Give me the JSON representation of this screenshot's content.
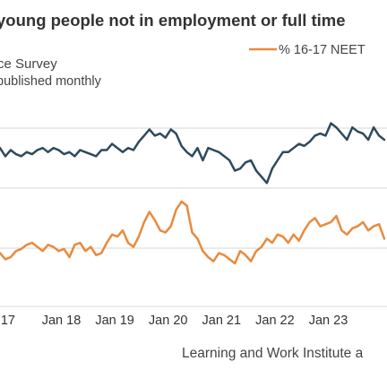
{
  "chart_data": {
    "type": "line",
    "title": "young people not in employment or full time",
    "subtitle_lines": [
      "rce Survey",
      "published monthly"
    ],
    "source": "Learning and Work Institute a",
    "legend": {
      "placement": "top-right",
      "visible_series": [
        "% 16-17 NEET"
      ]
    },
    "grid": true,
    "x_tick_labels": [
      {
        "label": "17",
        "x": 2017.0
      },
      {
        "label": "Jan 18",
        "x": 2018.0
      },
      {
        "label": "Jan 19",
        "x": 2019.0
      },
      {
        "label": "Jan 20",
        "x": 2020.0
      },
      {
        "label": "Jan 21",
        "x": 2021.0
      },
      {
        "label": "Jan 22",
        "x": 2022.0
      },
      {
        "label": "Jan 23",
        "x": 2023.0
      }
    ],
    "xlim": [
      2016.85,
      2024.1
    ],
    "ylim": [
      0,
      10
    ],
    "series": [
      {
        "name": "",
        "color": "#2e4a5c",
        "x": [
          2016.85,
          2016.95,
          2017.05,
          2017.15,
          2017.25,
          2017.35,
          2017.45,
          2017.55,
          2017.65,
          2017.75,
          2017.85,
          2017.95,
          2018.05,
          2018.15,
          2018.25,
          2018.35,
          2018.45,
          2018.55,
          2018.65,
          2018.75,
          2018.85,
          2018.95,
          2019.05,
          2019.15,
          2019.25,
          2019.35,
          2019.45,
          2019.55,
          2019.65,
          2019.75,
          2019.85,
          2019.95,
          2020.05,
          2020.15,
          2020.25,
          2020.35,
          2020.45,
          2020.55,
          2020.65,
          2020.75,
          2020.85,
          2020.95,
          2021.05,
          2021.15,
          2021.25,
          2021.35,
          2021.45,
          2021.55,
          2021.65,
          2021.75,
          2021.85,
          2021.95,
          2022.05,
          2022.15,
          2022.25,
          2022.35,
          2022.45,
          2022.55,
          2022.65,
          2022.75,
          2022.85,
          2022.95,
          2023.05,
          2023.15,
          2023.25,
          2023.35,
          2023.45,
          2023.55,
          2023.65,
          2023.75,
          2023.85,
          2023.95,
          2024.05
        ],
        "values": [
          7.6,
          7.2,
          7.5,
          7.3,
          7.2,
          7.4,
          7.3,
          7.5,
          7.6,
          7.4,
          7.6,
          7.5,
          7.3,
          7.4,
          7.2,
          7.5,
          7.4,
          7.3,
          7.2,
          7.5,
          7.5,
          7.8,
          7.6,
          7.4,
          7.6,
          7.5,
          7.9,
          8.2,
          8.5,
          8.2,
          8.3,
          8.1,
          8.5,
          8.3,
          7.7,
          7.4,
          7.2,
          7.6,
          7.0,
          7.6,
          7.5,
          7.4,
          7.2,
          7.0,
          6.5,
          6.6,
          6.9,
          7.0,
          6.5,
          6.2,
          5.9,
          6.6,
          7.0,
          7.4,
          7.4,
          7.6,
          7.8,
          7.7,
          7.9,
          8.2,
          8.3,
          8.2,
          8.8,
          8.6,
          8.3,
          8.0,
          8.6,
          8.4,
          8.3,
          8.0,
          8.6,
          8.2,
          8.0
        ]
      },
      {
        "name": "% 16-17 NEET",
        "color": "#e98a3c",
        "x": [
          2016.85,
          2016.95,
          2017.05,
          2017.15,
          2017.25,
          2017.35,
          2017.45,
          2017.55,
          2017.65,
          2017.75,
          2017.85,
          2017.95,
          2018.05,
          2018.15,
          2018.25,
          2018.35,
          2018.45,
          2018.55,
          2018.65,
          2018.75,
          2018.85,
          2018.95,
          2019.05,
          2019.15,
          2019.25,
          2019.35,
          2019.45,
          2019.55,
          2019.65,
          2019.75,
          2019.85,
          2019.95,
          2020.05,
          2020.15,
          2020.25,
          2020.35,
          2020.45,
          2020.55,
          2020.65,
          2020.75,
          2020.85,
          2020.95,
          2021.05,
          2021.15,
          2021.25,
          2021.35,
          2021.45,
          2021.55,
          2021.65,
          2021.75,
          2021.85,
          2021.95,
          2022.05,
          2022.15,
          2022.25,
          2022.35,
          2022.45,
          2022.55,
          2022.65,
          2022.75,
          2022.85,
          2022.95,
          2023.05,
          2023.15,
          2023.25,
          2023.35,
          2023.45,
          2023.55,
          2023.65,
          2023.75,
          2023.85,
          2023.95,
          2024.05
        ],
        "values": [
          2.5,
          2.2,
          2.3,
          2.6,
          2.7,
          2.9,
          3.0,
          2.8,
          2.6,
          2.9,
          2.8,
          2.6,
          2.7,
          2.3,
          2.9,
          3.0,
          2.6,
          2.8,
          2.4,
          2.5,
          3.0,
          3.4,
          3.3,
          3.6,
          3.0,
          2.8,
          3.3,
          4.0,
          4.5,
          4.1,
          3.6,
          3.5,
          3.8,
          4.6,
          5.0,
          4.8,
          3.5,
          3.2,
          2.6,
          2.3,
          2.1,
          2.5,
          2.4,
          2.2,
          2.0,
          2.6,
          2.4,
          2.1,
          2.6,
          2.8,
          3.2,
          3.0,
          3.4,
          3.3,
          3.0,
          3.4,
          3.1,
          3.6,
          4.0,
          4.2,
          3.8,
          3.9,
          4.0,
          4.3,
          3.6,
          3.4,
          3.7,
          3.8,
          4.0,
          3.6,
          3.8,
          3.9,
          3.2
        ]
      }
    ]
  }
}
